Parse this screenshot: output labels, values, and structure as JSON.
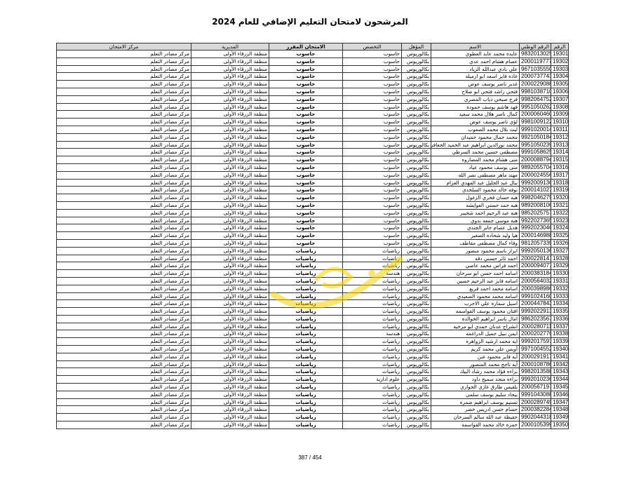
{
  "title": "المرشحون لامتحان التعليم الإضافي للعام 2024",
  "headers": {
    "num": "الرقم",
    "nid": "الرقم الوطني",
    "name": "الاسم",
    "qual": "المؤهل",
    "spec": "التخصص",
    "exam": "الامتحان المقرر",
    "dir": "المديرية",
    "center": "مركز الامتحان"
  },
  "rows": [
    [
      "19301",
      "9832013025",
      "عايده محمد عايد العطوي",
      "بكالوريوس",
      "حاسوب",
      "حاسوب",
      "منطقة الزرقاء الأولى",
      "مركز مصادر التعلم"
    ],
    [
      "19302",
      "2000119777",
      "عصام هشام احمد عدي",
      "بكالوريوس",
      "حاسوب",
      "حاسوب",
      "منطقة الزرقاء الأولى",
      "مركز مصادر التعلم"
    ],
    [
      "19303",
      "9671035550",
      "علي بادي عبدالله الزياد",
      "بكالوريوس",
      "حاسوب",
      "حاسوب",
      "منطقة الزرقاء الأولى",
      "مركز مصادر التعلم"
    ],
    [
      "19304",
      "2000737743",
      "غاده فايز اسعد ابو ارميله",
      "بكالوريوس",
      "حاسوب",
      "حاسوب",
      "منطقة الزرقاء الأولى",
      "مركز مصادر التعلم"
    ],
    [
      "19305",
      "2000229088",
      "غدير ناصر يوسف عوض",
      "بكالوريوس",
      "حاسوب",
      "حاسوب",
      "منطقة الزرقاء الأولى",
      "مركز مصادر التعلم"
    ],
    [
      "19306",
      "9981038710",
      "فتحي راشد فتحي ابو صلاح",
      "بكالوريوس",
      "حاسوب",
      "حاسوب",
      "منطقة الزرقاء الأولى",
      "مركز مصادر التعلم"
    ],
    [
      "19307",
      "9982064752",
      "فرح صبحي ذياب المصري",
      "بكالوريوس",
      "حاسوب",
      "حاسوب",
      "منطقة الزرقاء الأولى",
      "مركز مصادر التعلم"
    ],
    [
      "19308",
      "9951050262",
      "فهد هاشم يوسف حموده",
      "بكالوريوس",
      "حاسوب",
      "حاسوب",
      "منطقة الزرقاء الأولى",
      "مركز مصادر التعلم"
    ],
    [
      "19309",
      "2000060460",
      "كمال ناصر هلال محمد سعيد",
      "بكالوريوس",
      "حاسوب",
      "حاسوب",
      "منطقة الزرقاء الأولى",
      "مركز مصادر التعلم"
    ],
    [
      "19310",
      "9981009122",
      "لؤي ناصر يوسف عوض",
      "بكالوريوس",
      "حاسوب",
      "حاسوب",
      "منطقة الزرقاء الأولى",
      "مركز مصادر التعلم"
    ],
    [
      "19311",
      "9991020014",
      "ليث بلال محمد الصعوب",
      "بكالوريوس",
      "حاسوب",
      "حاسوب",
      "منطقة الزرقاء الأولى",
      "مركز مصادر التعلم"
    ],
    [
      "19312",
      "9921050184",
      "محمد جمال محمود حميدان",
      "بكالوريوس",
      "حاسوب",
      "حاسوب",
      "منطقة الزرقاء الأولى",
      "مركز مصادر التعلم"
    ],
    [
      "19313",
      "9951050239",
      "محمد نورالدين ابراهيم عبد الحميد الجعافره",
      "بكالوريوس",
      "حاسوب",
      "حاسوب",
      "منطقة الزرقاء الأولى",
      "مركز مصادر التعلم"
    ],
    [
      "19314",
      "9991058625",
      "مصطفى حسين محمد السرطي",
      "بكالوريوس",
      "حاسوب",
      "حاسوب",
      "منطقة الزرقاء الأولى",
      "مركز مصادر التعلم"
    ],
    [
      "19315",
      "2000088794",
      "منى هشام محمد المصاروه",
      "بكالوريوس",
      "حاسوب",
      "حاسوب",
      "منطقة الزرقاء الأولى",
      "مركز مصادر التعلم"
    ],
    [
      "19316",
      "9892055704",
      "منى يوسف محمود عياد",
      "بكالوريوس",
      "حاسوب",
      "حاسوب",
      "منطقة الزرقاء الأولى",
      "مركز مصادر التعلم"
    ],
    [
      "19317",
      "2000024556",
      "مهند ماهر مصطفى نصر الله",
      "بكالوريوس",
      "حاسوب",
      "حاسوب",
      "منطقة الزرقاء الأولى",
      "مركز مصادر التعلم"
    ],
    [
      "19318",
      "9992009136",
      "نبال عبد الجليل عبد المهدي العزام",
      "بكالوريوس",
      "حاسوب",
      "حاسوب",
      "منطقة الزرقاء الأولى",
      "مركز مصادر التعلم"
    ],
    [
      "19319",
      "2000141027",
      "نوفه خالد محمود السلخدي",
      "بكالوريوس",
      "حاسوب",
      "حاسوب",
      "منطقة الزرقاء الأولى",
      "مركز مصادر التعلم"
    ],
    [
      "19320",
      "9982046279",
      "هبه حسان فخري الزغول",
      "بكالوريوس",
      "حاسوب",
      "حاسوب",
      "منطقة الزرقاء الأولى",
      "مركز مصادر التعلم"
    ],
    [
      "19321",
      "9892008106",
      "هبه حمد حسني العوايشه",
      "بكالوريوس",
      "حاسوب",
      "حاسوب",
      "منطقة الزرقاء الأولى",
      "مركز مصادر التعلم"
    ],
    [
      "19322",
      "9852025757",
      "هبه عبد الرحيم احمد شحيبر",
      "بكالوريوس",
      "حاسوب",
      "حاسوب",
      "منطقة الزرقاء الأولى",
      "مركز مصادر التعلم"
    ],
    [
      "19323",
      "9922027365",
      "هبه موسى جمعه بدوي",
      "بكالوريوس",
      "حاسوب",
      "حاسوب",
      "منطقة الزرقاء الأولى",
      "مركز مصادر التعلم"
    ],
    [
      "19324",
      "9992023046",
      "هديل عصام جابر الجندي",
      "بكالوريوس",
      "حاسوب",
      "حاسوب",
      "منطقة الزرقاء الأولى",
      "مركز مصادر التعلم"
    ],
    [
      "19325",
      "2000146988",
      "هيا وليد شحاده الصغير",
      "بكالوريوس",
      "حاسوب",
      "حاسوب",
      "منطقة الزرقاء الأولى",
      "مركز مصادر التعلم"
    ],
    [
      "19326",
      "9812057339",
      "وفاء كمال مصطفى مقاطف",
      "بكالوريوس",
      "حاسوب",
      "حاسوب",
      "منطقة الزرقاء الأولى",
      "مركز مصادر التعلم"
    ],
    [
      "19327",
      "9992050136",
      "ابرار باسم محمود منصور",
      "بكالوريوس",
      "رياضيات",
      "رياضيات",
      "منطقة الزرقاء الأولى",
      "مركز مصادر التعلم"
    ],
    [
      "19328",
      "2000228141",
      "احمد ثائر حسني دقه",
      "بكالوريوس",
      "رياضيات",
      "رياضيات",
      "منطقة الزرقاء الأولى",
      "مركز مصادر التعلم"
    ],
    [
      "19329",
      "2000094077",
      "احمد فراس محمد عاصي",
      "بكالوريوس",
      "رياضيات",
      "رياضيات",
      "منطقة الزرقاء الأولى",
      "مركز مصادر التعلم"
    ],
    [
      "19330",
      "2000383184",
      "اسامه احمد حسن ابو سرحان",
      "بكالوريوس",
      "هندسة",
      "رياضيات",
      "منطقة الزرقاء الأولى",
      "مركز مصادر التعلم"
    ],
    [
      "19331",
      "2000564032",
      "اسامه فايز عبد الرحيم حسين",
      "بكالوريوس",
      "رياضيات",
      "رياضيات",
      "منطقة الزرقاء الأولى",
      "مركز مصادر التعلم"
    ],
    [
      "19332",
      "2000398986",
      "اسامه محمد احمد قريع",
      "بكالوريوس",
      "رياضيات",
      "رياضيات",
      "منطقة الزرقاء الأولى",
      "مركز مصادر التعلم"
    ],
    [
      "19333",
      "9991024160",
      "اسامه محمد محمود الصعيدي",
      "بكالوريوس",
      "رياضيات",
      "رياضيات",
      "منطقة الزرقاء الأولى",
      "مركز مصادر التعلم"
    ],
    [
      "19334",
      "2000447843",
      "اسيل سماره علي الاجرب",
      "بكالوريوس",
      "رياضيات",
      "رياضيات",
      "منطقة الزرقاء الأولى",
      "مركز مصادر التعلم"
    ],
    [
      "19335",
      "9992022913",
      "افنان محمود يوسف القواسمه",
      "بكالوريوس",
      "رياضيات",
      "رياضيات",
      "منطقة الزرقاء الأولى",
      "مركز مصادر التعلم"
    ],
    [
      "19336",
      "9862023567",
      "امال باسر ابراهيم الخوالده",
      "بكالوريوس",
      "رياضيات",
      "رياضيات",
      "منطقة الزرقاء الأولى",
      "مركز مصادر التعلم"
    ],
    [
      "19337",
      "2000280711",
      "انشراح عدنان حمدي ابو مرخيه",
      "بكالوريوس",
      "رياضيات",
      "رياضيات",
      "منطقة الزرقاء الأولى",
      "مركز مصادر التعلم"
    ],
    [
      "19338",
      "2000202776",
      "ايمن نبيل جميل الدراغمه",
      "بكالوريوس",
      "هندسة",
      "رياضيات",
      "منطقة الزرقاء الأولى",
      "مركز مصادر التعلم"
    ],
    [
      "19339",
      "9992017597",
      "ايه محمد ارشيد الزواهره",
      "بكالوريوس",
      "رياضيات",
      "رياضيات",
      "منطقة الزرقاء الأولى",
      "مركز مصادر التعلم"
    ],
    [
      "19340",
      "9971004552",
      "أويس علي محمد كريم",
      "بكالوريوس",
      "رياضيات",
      "رياضيات",
      "منطقة الزرقاء الأولى",
      "مركز مصادر التعلم"
    ],
    [
      "19341",
      "2000291917",
      "آيه فايز محمود غنن",
      "بكالوريوس",
      "رياضيات",
      "رياضيات",
      "منطقة الزرقاء الأولى",
      "مركز مصادر التعلم"
    ],
    [
      "19342",
      "2000108786",
      "آيه تاجح محمد المنصور",
      "بكالوريوس",
      "رياضيات",
      "رياضيات",
      "منطقة الزرقاء الأولى",
      "مركز مصادر التعلم"
    ],
    [
      "19343",
      "9982013588",
      "براءه فؤاد محمد رشاد البيك",
      "بكالوريوس",
      "رياضيات",
      "رياضيات",
      "منطقة الزرقاء الأولى",
      "مركز مصادر التعلم"
    ],
    [
      "19344",
      "9992010236",
      "براءه منجد سميح داود",
      "بكالوريوس",
      "علوم ادارية",
      "رياضيات",
      "منطقة الزرقاء الأولى",
      "مركز مصادر التعلم"
    ],
    [
      "19345",
      "2000567197",
      "بلقيس طارق غازي الحواري",
      "بكالوريوس",
      "رياضيات",
      "رياضيات",
      "منطقة الزرقاء الأولى",
      "مركز مصادر التعلم"
    ],
    [
      "19346",
      "9991043088",
      "بيجاد سليم يوسف سلمي",
      "بكالوريوس",
      "رياضيات",
      "رياضيات",
      "منطقة الزرقاء الأولى",
      "مركز مصادر التعلم"
    ],
    [
      "19347",
      "2000289749",
      "تسنيم يوسف ابراهيم ضمره",
      "بكالوريوس",
      "رياضيات",
      "رياضيات",
      "منطقة الزرقاء الأولى",
      "مركز مصادر التعلم"
    ],
    [
      "19348",
      "2000382284",
      "حسام حسن ادريس خضر",
      "بكالوريوس",
      "رياضيات",
      "رياضيات",
      "منطقة الزرقاء الأولى",
      "مركز مصادر التعلم"
    ],
    [
      "19349",
      "9902044318",
      "حفيظة عبد الله سالم السرحان",
      "بكالوريوس",
      "رياضيات",
      "رياضيات",
      "منطقة الزرقاء الأولى",
      "مركز مصادر التعلم"
    ],
    [
      "19350",
      "2000105399",
      "حمزه خالد محمد القواسمه",
      "بكالوريوس",
      "رياضيات",
      "رياضيات",
      "منطقة الزرقاء الأولى",
      "مركز مصادر التعلم"
    ]
  ],
  "footer": {
    "page": "387 / 454"
  },
  "colors": {
    "header_bg": "#d9d9d9",
    "watermark": "#f5d000"
  }
}
